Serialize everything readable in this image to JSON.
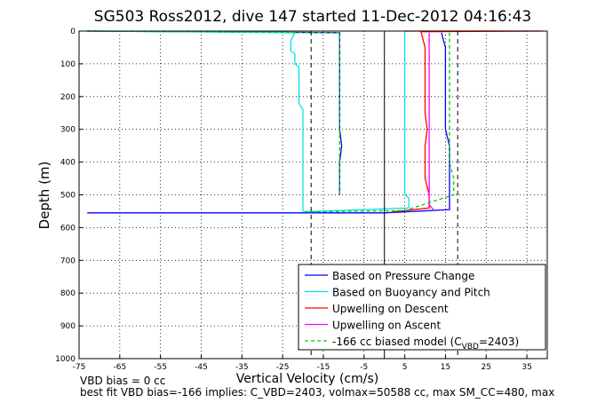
{
  "chart_data": {
    "type": "line",
    "title": "SG503 Ross2012, dive 147 started 11-Dec-2012 04:16:43",
    "xlabel": "Vertical Velocity (cm/s)",
    "ylabel": "Depth (m)",
    "xlim": [
      -75,
      40
    ],
    "ylim": [
      0,
      1000
    ],
    "y_reversed": true,
    "grid": true,
    "x_ticks": [
      "-75",
      "-65",
      "-55",
      "-45",
      "-35",
      "-25",
      "-15",
      "-5",
      "5",
      "15",
      "25",
      "35"
    ],
    "y_ticks": [
      "0",
      "100",
      "200",
      "300",
      "400",
      "500",
      "600",
      "700",
      "800",
      "900",
      "1000"
    ],
    "legend_position": "bottom-right",
    "legend": [
      {
        "label": "Based on Pressure Change"
      },
      {
        "label": "Based on Buoyancy and Pitch"
      },
      {
        "label": "Upwelling on Descent"
      },
      {
        "label": "Upwelling on Ascent"
      },
      {
        "label": "-166 cc biased model (C",
        "sub": "VBD",
        "suffix": "=2403)"
      }
    ],
    "series": [
      {
        "color": "#0000ff",
        "style": "solid",
        "x": [
          -73,
          -11,
          -11,
          -11,
          -11,
          -11,
          -11,
          -11,
          -10.5,
          -11,
          -11,
          -11,
          null,
          14,
          15,
          15,
          15,
          15,
          15,
          15,
          16,
          16,
          16,
          16,
          16,
          0,
          -73
        ],
        "y": [
          0,
          5,
          50,
          100,
          150,
          200,
          250,
          300,
          350,
          400,
          450,
          500,
          550,
          5,
          50,
          100,
          150,
          200,
          250,
          300,
          350,
          400,
          450,
          500,
          545,
          555,
          555
        ]
      },
      {
        "color": "#00e5e5",
        "style": "solid",
        "x": [
          -73,
          -22,
          -23,
          -23,
          -22,
          -22,
          -21,
          -21,
          -21,
          -21,
          -21,
          -21,
          -20,
          -20,
          -20,
          -20,
          -20,
          -20,
          -20,
          -20,
          -20,
          -20,
          -20,
          -20,
          null,
          5,
          5,
          5,
          5,
          5,
          5,
          5,
          6,
          6,
          6,
          6,
          -20
        ],
        "y": [
          0,
          5,
          30,
          60,
          70,
          100,
          110,
          150,
          160,
          180,
          200,
          220,
          240,
          300,
          350,
          400,
          420,
          450,
          470,
          500,
          520,
          540,
          548,
          552,
          null,
          0,
          100,
          200,
          300,
          400,
          450,
          500,
          510,
          520,
          530,
          540,
          552
        ]
      },
      {
        "color": "#ff0000",
        "style": "solid",
        "x": [
          5,
          39,
          9,
          10,
          10,
          10,
          10,
          10,
          10.5,
          10,
          10,
          10,
          11,
          11,
          2
        ],
        "y": [
          0,
          0,
          2,
          50,
          100,
          150,
          200,
          250,
          300,
          350,
          400,
          450,
          500,
          540,
          552
        ]
      },
      {
        "color": "#ff00ff",
        "style": "solid",
        "x": [
          11,
          11,
          11,
          11,
          11,
          11,
          11,
          11,
          11,
          11,
          11,
          11,
          12
        ],
        "y": [
          5,
          50,
          100,
          150,
          200,
          250,
          300,
          350,
          400,
          450,
          500,
          530,
          545
        ]
      },
      {
        "color": "#00cc00",
        "style": "dashed",
        "x": [
          -73,
          -11,
          -11,
          -11,
          -11,
          -11,
          -11,
          -11,
          -11,
          -11,
          -11,
          -11,
          null,
          16,
          16,
          16,
          16,
          16,
          16,
          16,
          16,
          16,
          17,
          17,
          5,
          -20
        ],
        "y": [
          0,
          5,
          50,
          100,
          150,
          200,
          250,
          300,
          350,
          400,
          450,
          500,
          550,
          5,
          50,
          100,
          150,
          200,
          250,
          300,
          350,
          400,
          450,
          500,
          548,
          552
        ]
      }
    ],
    "reference_lines": [
      {
        "x": 0,
        "style": "solid",
        "color": "#000000"
      },
      {
        "x": -18,
        "style": "dashed",
        "color": "#000000"
      },
      {
        "x": 18,
        "style": "dashed",
        "color": "#000000"
      }
    ]
  },
  "footer": {
    "line1": "VBD bias = 0 cc",
    "line2": "best fit VBD bias=-166 implies: C_VBD=2403, volmax=50588 cc, max SM_CC=480, max"
  }
}
